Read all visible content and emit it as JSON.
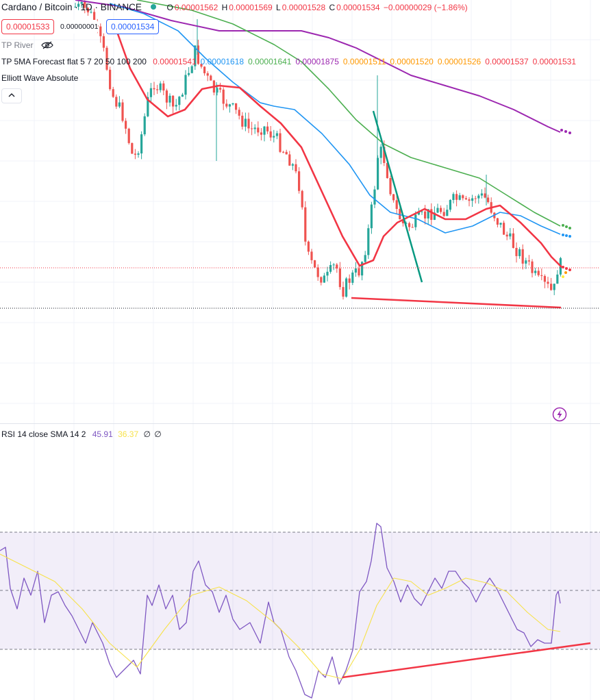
{
  "symbol": {
    "title": "Cardano / Bitcoin · 1D · BINANCE",
    "ohlc": {
      "o_label": "O",
      "o_value": "0.00001562",
      "h_label": "H",
      "h_value": "0.00001569",
      "l_label": "L",
      "l_value": "0.00001528",
      "c_label": "C",
      "c_value": "0.00001534",
      "change": "−0.00000029 (−1.86%)"
    }
  },
  "trade": {
    "sell_price": "0.00001533",
    "spread": "0.00000001",
    "buy_price": "0.00001534"
  },
  "indicators": {
    "tp_river": {
      "label": "TP River",
      "icon": "eye-crossed-icon"
    },
    "tp_5ma": {
      "label": "TP 5MA Forecast flat 5 7 20 50 100 200",
      "values": [
        {
          "v": "0.00001541",
          "color": "#f23645"
        },
        {
          "v": "0.00001618",
          "color": "#2196f3"
        },
        {
          "v": "0.00001641",
          "color": "#4caf50"
        },
        {
          "v": "0.00001875",
          "color": "#9c27b0"
        },
        {
          "v": "0.00001511",
          "color": "#ff9800"
        },
        {
          "v": "0.00001520",
          "color": "#ff9800"
        },
        {
          "v": "0.00001526",
          "color": "#ff9800"
        },
        {
          "v": "0.00001537",
          "color": "#f23645"
        },
        {
          "v": "0.00001531",
          "color": "#f23645"
        }
      ]
    },
    "elliott": {
      "label": "Elliott Wave Absolute"
    }
  },
  "rsi": {
    "label": "RSI 14 close SMA 14 2",
    "rsi_value": "45.91",
    "sma_value": "36.37",
    "extra1": "∅",
    "extra2": "∅"
  },
  "colors": {
    "up": "#26a69a",
    "down": "#ef5350",
    "ma_fast": "#f23645",
    "ma_blue": "#2196f3",
    "ma_green": "#4caf50",
    "ma_purple": "#9c27b0",
    "rsi_line": "#7e57c2",
    "rsi_sma": "#f7e24a",
    "trend_red": "#f23645",
    "trend_green": "#089981"
  }
}
